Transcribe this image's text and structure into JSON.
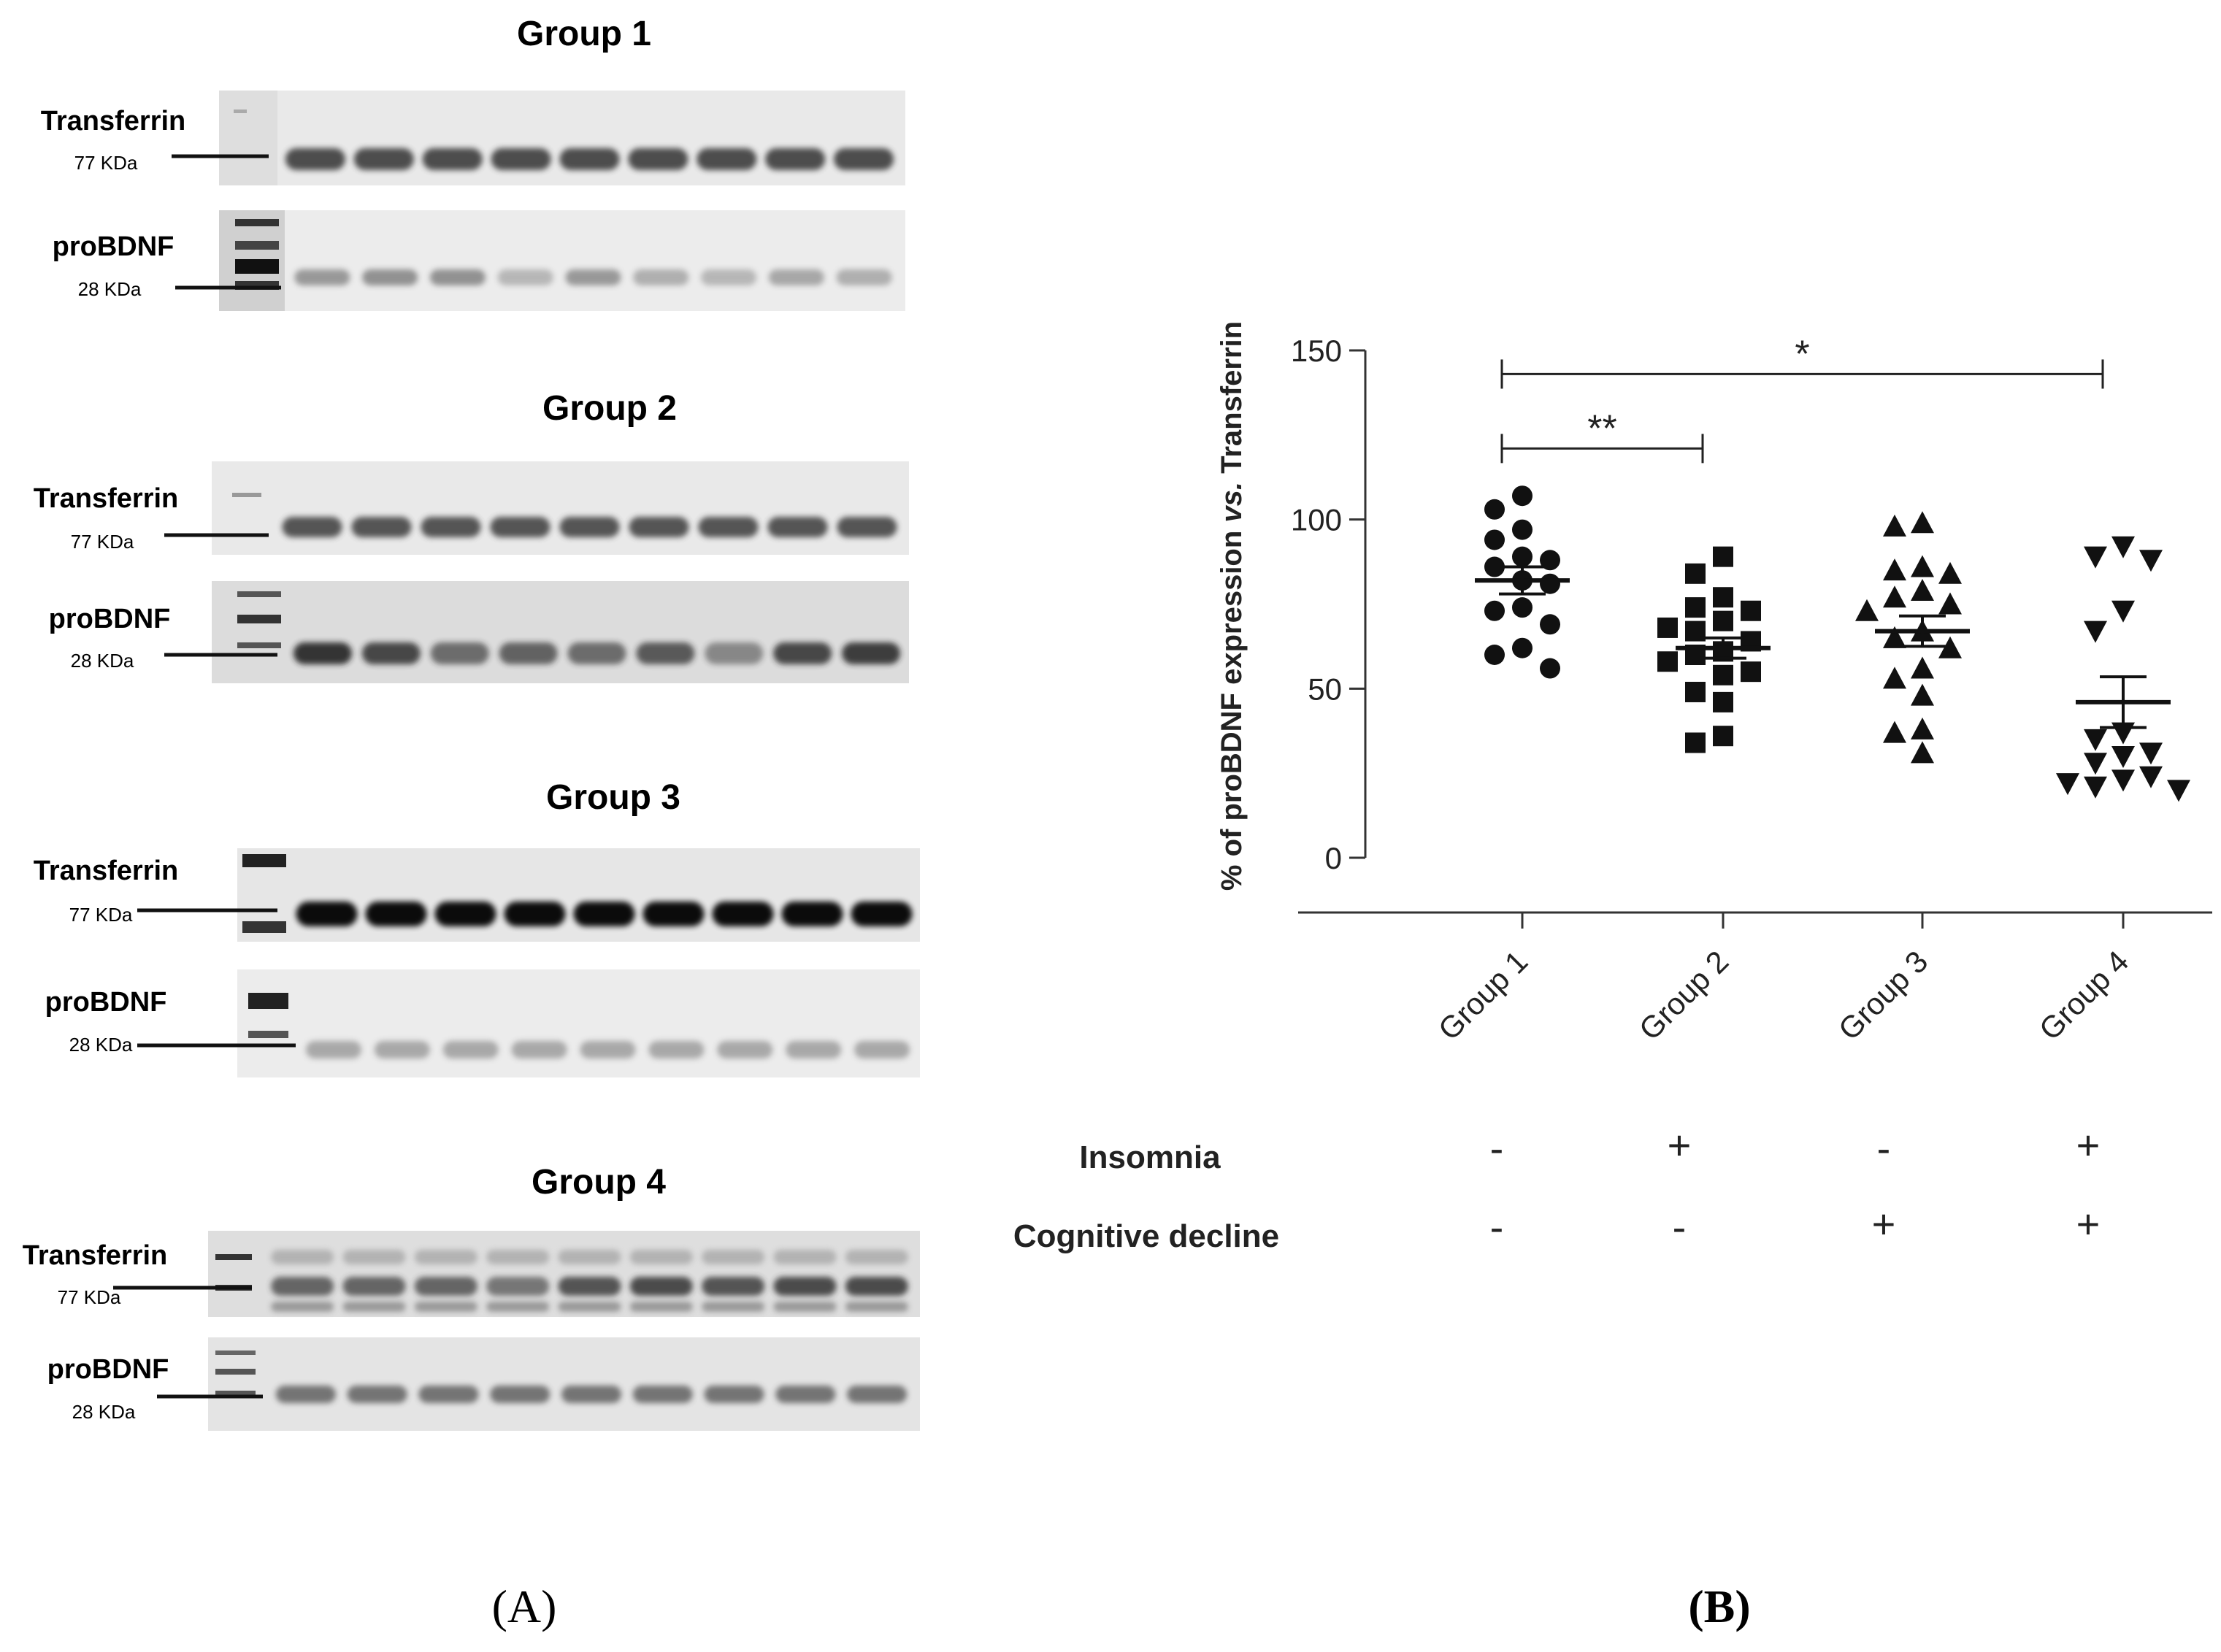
{
  "panel_a": {
    "label": "(A)",
    "groups": [
      {
        "title": "Group 1",
        "rows": [
          {
            "protein": "Transferrin",
            "mw": "77 KDa"
          },
          {
            "protein": "proBDNF",
            "mw": "28 KDa"
          }
        ]
      },
      {
        "title": "Group 2",
        "rows": [
          {
            "protein": "Transferrin",
            "mw": "77 KDa"
          },
          {
            "protein": "proBDNF",
            "mw": "28 KDa"
          }
        ]
      },
      {
        "title": "Group 3",
        "rows": [
          {
            "protein": "Transferrin",
            "mw": "77 KDa"
          },
          {
            "protein": "proBDNF",
            "mw": "28 KDa"
          }
        ]
      },
      {
        "title": "Group 4",
        "rows": [
          {
            "protein": "Transferrin",
            "mw": "77 KDa"
          },
          {
            "protein": "proBDNF",
            "mw": "28 KDa"
          }
        ]
      }
    ]
  },
  "panel_b": {
    "label": "(B)"
  },
  "conditions": {
    "rows": [
      {
        "label": "Insomnia",
        "values": [
          "-",
          "+",
          "-",
          "+"
        ]
      },
      {
        "label": "Cognitive decline",
        "values": [
          "-",
          "-",
          "+",
          "+"
        ]
      }
    ]
  },
  "chart_data": {
    "type": "scatter",
    "title": "",
    "xlabel": "",
    "ylabel": "% of proBDNF expression vs. Transferrin",
    "ylabel_parts": {
      "pre": "% of proBDNF expression ",
      "italic": "vs.",
      "post": " Transferrin"
    },
    "categories": [
      "Group 1",
      "Group 2",
      "Group 3",
      "Group 4"
    ],
    "ylim": [
      0,
      150
    ],
    "yticks": [
      0,
      50,
      100,
      150
    ],
    "grid": false,
    "legend": "none",
    "series": [
      {
        "category": "Group 1",
        "marker": "circle",
        "values": [
          107,
          103,
          97,
          94,
          89,
          88,
          86,
          82,
          81,
          74,
          73,
          69,
          62,
          60,
          56
        ],
        "mean": 82,
        "sem": 4
      },
      {
        "category": "Group 2",
        "marker": "square",
        "values": [
          89,
          84,
          77,
          74,
          73,
          70,
          68,
          67,
          64,
          61,
          60,
          58,
          55,
          54,
          49,
          46,
          36,
          34
        ],
        "mean": 62,
        "sem": 3
      },
      {
        "category": "Group 3",
        "marker": "triangle-up",
        "values": [
          99,
          98,
          86,
          85,
          84,
          79,
          77,
          75,
          73,
          67,
          65,
          62,
          56,
          53,
          48,
          38,
          37,
          31
        ],
        "mean": 67,
        "sem": 4.5
      },
      {
        "category": "Group 4",
        "marker": "triangle-down",
        "values": [
          92,
          89,
          88,
          73,
          67,
          37,
          35,
          31,
          30,
          28,
          24,
          23,
          22,
          21,
          20
        ],
        "mean": 46,
        "sem": 7.5
      }
    ],
    "significance": [
      {
        "from": "Group 1",
        "to": "Group 2",
        "label": "**",
        "y": 121
      },
      {
        "from": "Group 1",
        "to": "Group 4",
        "label": "*",
        "y": 143
      }
    ]
  }
}
